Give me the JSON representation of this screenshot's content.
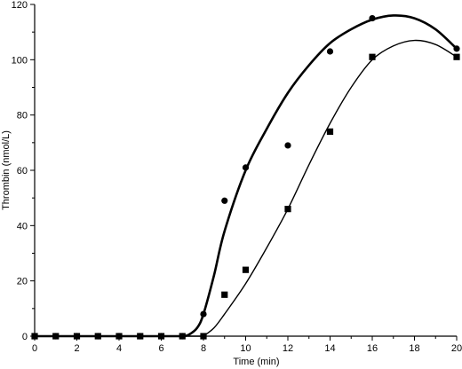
{
  "chart_data": {
    "type": "scatter",
    "title": "",
    "xlabel": "Time (min)",
    "ylabel": "Thrombin (nmol/L)",
    "xlim": [
      0,
      20
    ],
    "ylim": [
      0,
      120
    ],
    "xticks": [
      0,
      2,
      4,
      6,
      8,
      10,
      12,
      14,
      16,
      18,
      20
    ],
    "yticks": [
      0,
      20,
      40,
      60,
      80,
      100,
      120
    ],
    "grid": false,
    "legend": "none",
    "series": [
      {
        "marker": "circle",
        "line_weight": "thick",
        "points": [
          [
            0,
            0
          ],
          [
            1,
            0
          ],
          [
            2,
            0
          ],
          [
            3,
            0
          ],
          [
            4,
            0
          ],
          [
            5,
            0
          ],
          [
            6,
            0
          ],
          [
            7,
            0
          ],
          [
            8,
            8
          ],
          [
            9,
            49
          ],
          [
            10,
            61
          ],
          [
            12,
            69
          ],
          [
            14,
            103
          ],
          [
            16,
            115
          ],
          [
            20,
            104
          ]
        ],
        "fit_curve": [
          [
            7,
            0
          ],
          [
            7.3,
            0.5
          ],
          [
            7.7,
            3
          ],
          [
            8,
            8
          ],
          [
            8.5,
            22
          ],
          [
            9,
            38
          ],
          [
            10,
            60
          ],
          [
            11,
            75
          ],
          [
            12,
            88
          ],
          [
            13,
            98
          ],
          [
            14,
            106
          ],
          [
            15,
            111
          ],
          [
            16,
            114.5
          ],
          [
            17,
            116
          ],
          [
            18,
            115
          ],
          [
            19,
            111
          ],
          [
            20,
            104
          ]
        ]
      },
      {
        "marker": "square",
        "line_weight": "thin",
        "points": [
          [
            0,
            0
          ],
          [
            1,
            0
          ],
          [
            2,
            0
          ],
          [
            3,
            0
          ],
          [
            4,
            0
          ],
          [
            5,
            0
          ],
          [
            6,
            0
          ],
          [
            7,
            0
          ],
          [
            8,
            0
          ],
          [
            9,
            15
          ],
          [
            10,
            24
          ],
          [
            12,
            46
          ],
          [
            14,
            74
          ],
          [
            16,
            101
          ],
          [
            20,
            101
          ]
        ],
        "fit_curve": [
          [
            8,
            0
          ],
          [
            8.5,
            3
          ],
          [
            9,
            8
          ],
          [
            10,
            19
          ],
          [
            11,
            32
          ],
          [
            12,
            46
          ],
          [
            13,
            62
          ],
          [
            14,
            77
          ],
          [
            15,
            90
          ],
          [
            16,
            100
          ],
          [
            17,
            105
          ],
          [
            18,
            107
          ],
          [
            19,
            105.5
          ],
          [
            20,
            101
          ]
        ]
      }
    ]
  }
}
